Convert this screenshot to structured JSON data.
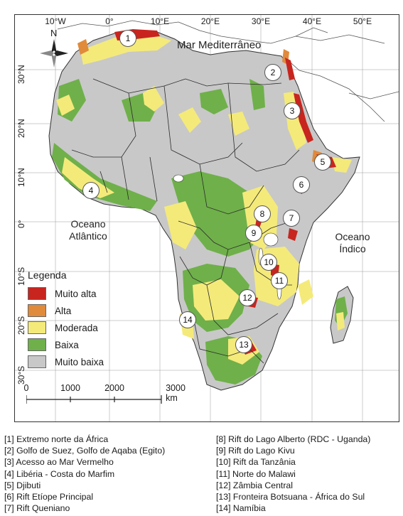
{
  "map": {
    "longitude_ticks": [
      "10°W",
      "0°",
      "10°E",
      "20°E",
      "30°E",
      "40°E",
      "50°E"
    ],
    "latitude_ticks": [
      "30°N",
      "20°N",
      "10°N",
      "0°",
      "10°S",
      "20°S",
      "30°S"
    ],
    "north_label": "N",
    "sea_labels": {
      "mediterranean": "Mar Mediterrâneo",
      "atlantic_line1": "Oceano",
      "atlantic_line2": "Atlântico",
      "indian_line1": "Oceano",
      "indian_line2": "Índico"
    },
    "markers": [
      "1",
      "2",
      "3",
      "4",
      "5",
      "6",
      "7",
      "8",
      "9",
      "10",
      "11",
      "12",
      "13",
      "14"
    ],
    "colors": {
      "muito_alta": "#c8251f",
      "alta": "#e08a3b",
      "moderada": "#f4ea7a",
      "baixa": "#6fb04a",
      "muito_baixa": "#c8c8c8",
      "borders": "#2b2b2b",
      "water": "#ffffff"
    }
  },
  "legend": {
    "title": "Legenda",
    "items": [
      {
        "label": "Muito alta",
        "color": "#c8251f"
      },
      {
        "label": "Alta",
        "color": "#e08a3b"
      },
      {
        "label": "Moderada",
        "color": "#f4ea7a"
      },
      {
        "label": "Baixa",
        "color": "#6fb04a"
      },
      {
        "label": "Muito baixa",
        "color": "#c8c8c8"
      }
    ]
  },
  "scale_bar": {
    "labels": [
      "0",
      "1000",
      "2000",
      "3000 km"
    ]
  },
  "caption": {
    "left": [
      "[1] Extremo norte da África",
      "[2] Golfo de Suez, Golfo de Aqaba (Egito)",
      "[3] Acesso ao Mar Vermelho",
      "[4] Libéria - Costa do Marfim",
      "[5] Djibuti",
      "[6] Rift Etíope Principal",
      "[7] Rift Queniano"
    ],
    "right": [
      "[8] Rift do Lago Alberto (RDC - Uganda)",
      "[9] Rift do Lago Kivu",
      "[10] Rift da Tanzânia",
      "[11] Norte do Malawi",
      "[12] Zâmbia Central",
      "[13] Fronteira Botsuana - África do Sul",
      "[14] Namíbia"
    ]
  }
}
